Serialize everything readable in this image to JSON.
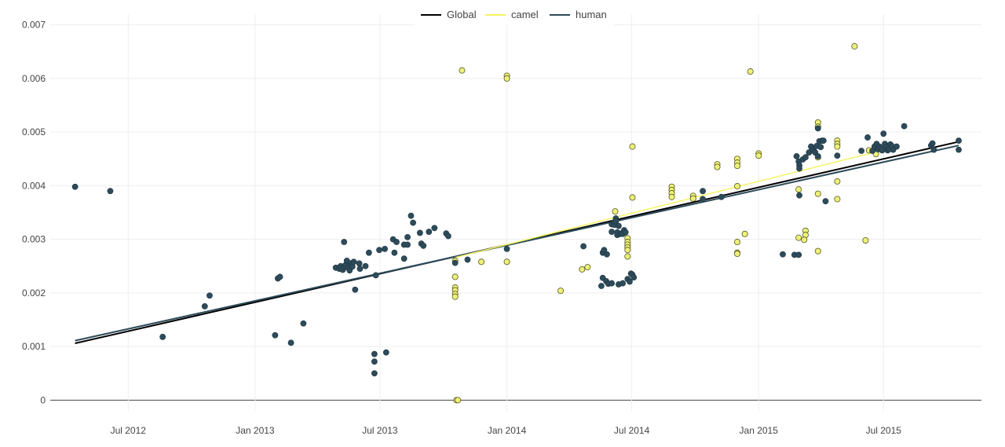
{
  "chart_data": {
    "type": "scatter",
    "title": "",
    "xlabel": "",
    "ylabel": "",
    "xlim": [
      "2012-03-10",
      "2015-11-20"
    ],
    "ylim": [
      -0.0002,
      0.0072
    ],
    "y_ticks": [
      0,
      0.001,
      0.002,
      0.003,
      0.004,
      0.005,
      0.006,
      0.007
    ],
    "y_tick_labels": [
      "0",
      "0.001",
      "0.002",
      "0.003",
      "0.004",
      "0.005",
      "0.006",
      "0.007"
    ],
    "x_ticks": [
      "2012-07-01",
      "2013-01-01",
      "2013-07-01",
      "2014-01-01",
      "2014-07-01",
      "2015-01-01",
      "2015-07-01"
    ],
    "x_tick_labels": [
      "Jul 2012",
      "Jan 2013",
      "Jul 2013",
      "Jan 2014",
      "Jul 2014",
      "Jan 2015",
      "Jul 2015"
    ],
    "grid": true,
    "legend_position": "top-center",
    "legend": [
      {
        "name": "Global",
        "color": "#000000"
      },
      {
        "name": "camel",
        "color": "#f4f463"
      },
      {
        "name": "human",
        "color": "#2d4b5a"
      }
    ],
    "series": [
      {
        "name": "camel",
        "color": "#edf178",
        "points": [
          [
            "2013-10-20",
            0.0
          ],
          [
            "2013-10-22",
            0.0
          ],
          [
            "2013-10-18",
            0.0026
          ],
          [
            "2013-10-18",
            0.0023
          ],
          [
            "2013-10-18",
            0.0021
          ],
          [
            "2013-10-18",
            0.00205
          ],
          [
            "2013-10-18",
            0.00198
          ],
          [
            "2013-10-18",
            0.00193
          ],
          [
            "2013-10-28",
            0.00615
          ],
          [
            "2013-11-25",
            0.00258
          ],
          [
            "2014-01-01",
            0.00605
          ],
          [
            "2014-01-01",
            0.006
          ],
          [
            "2014-01-01",
            0.00258
          ],
          [
            "2014-03-20",
            0.00204
          ],
          [
            "2014-04-20",
            0.00244
          ],
          [
            "2014-04-28",
            0.00248
          ],
          [
            "2014-06-07",
            0.00352
          ],
          [
            "2014-06-25",
            0.00302
          ],
          [
            "2014-06-25",
            0.00295
          ],
          [
            "2014-06-25",
            0.0029
          ],
          [
            "2014-06-25",
            0.00285
          ],
          [
            "2014-06-25",
            0.0028
          ],
          [
            "2014-06-25",
            0.00268
          ],
          [
            "2014-07-02",
            0.00473
          ],
          [
            "2014-07-02",
            0.00378
          ],
          [
            "2014-08-28",
            0.00398
          ],
          [
            "2014-08-28",
            0.00392
          ],
          [
            "2014-08-28",
            0.00386
          ],
          [
            "2014-08-28",
            0.00379
          ],
          [
            "2014-09-28",
            0.00381
          ],
          [
            "2014-09-28",
            0.00376
          ],
          [
            "2014-11-02",
            0.0044
          ],
          [
            "2014-11-02",
            0.00435
          ],
          [
            "2014-12-01",
            0.0045
          ],
          [
            "2014-12-01",
            0.00443
          ],
          [
            "2014-12-01",
            0.00437
          ],
          [
            "2014-12-01",
            0.00295
          ],
          [
            "2014-12-01",
            0.00275
          ],
          [
            "2014-12-01",
            0.00273
          ],
          [
            "2014-12-01",
            0.00399
          ],
          [
            "2014-12-12",
            0.0031
          ],
          [
            "2014-12-20",
            0.00613
          ],
          [
            "2015-01-01",
            0.0046
          ],
          [
            "2015-01-01",
            0.00456
          ],
          [
            "2015-02-28",
            0.00393
          ],
          [
            "2015-02-28",
            0.00303
          ],
          [
            "2015-03-10",
            0.00316
          ],
          [
            "2015-03-10",
            0.00308
          ],
          [
            "2015-03-08",
            0.00299
          ],
          [
            "2015-03-28",
            0.00518
          ],
          [
            "2015-03-28",
            0.0051
          ],
          [
            "2015-03-28",
            0.00453
          ],
          [
            "2015-03-28",
            0.00385
          ],
          [
            "2015-03-28",
            0.00278
          ],
          [
            "2015-04-25",
            0.00484
          ],
          [
            "2015-04-25",
            0.00478
          ],
          [
            "2015-04-25",
            0.00473
          ],
          [
            "2015-04-25",
            0.00408
          ],
          [
            "2015-04-25",
            0.00375
          ],
          [
            "2015-05-20",
            0.0066
          ],
          [
            "2015-06-05",
            0.00298
          ],
          [
            "2015-06-10",
            0.00466
          ],
          [
            "2015-06-20",
            0.00459
          ]
        ]
      },
      {
        "name": "human",
        "color": "#2d4b5a",
        "points": [
          [
            "2012-04-15",
            0.00398
          ],
          [
            "2012-06-05",
            0.0039
          ],
          [
            "2012-08-20",
            0.00118
          ],
          [
            "2012-10-20",
            0.00175
          ],
          [
            "2012-10-27",
            0.00195
          ],
          [
            "2013-01-30",
            0.00121
          ],
          [
            "2013-02-03",
            0.00227
          ],
          [
            "2013-02-06",
            0.0023
          ],
          [
            "2013-02-22",
            0.00107
          ],
          [
            "2013-03-12",
            0.00143
          ],
          [
            "2013-04-28",
            0.00247
          ],
          [
            "2013-05-03",
            0.00245
          ],
          [
            "2013-05-05",
            0.0025
          ],
          [
            "2013-05-08",
            0.00243
          ],
          [
            "2013-05-10",
            0.00248
          ],
          [
            "2013-05-12",
            0.00252
          ],
          [
            "2013-05-14",
            0.0026
          ],
          [
            "2013-05-16",
            0.00247
          ],
          [
            "2013-05-18",
            0.00242
          ],
          [
            "2013-05-20",
            0.00255
          ],
          [
            "2013-05-22",
            0.00249
          ],
          [
            "2013-05-24",
            0.00258
          ],
          [
            "2013-05-26",
            0.00206
          ],
          [
            "2013-05-10",
            0.00295
          ],
          [
            "2013-06-01",
            0.00255
          ],
          [
            "2013-06-02",
            0.00245
          ],
          [
            "2013-06-10",
            0.0025
          ],
          [
            "2013-06-15",
            0.00275
          ],
          [
            "2013-06-25",
            0.00233
          ],
          [
            "2013-06-30",
            0.0028
          ],
          [
            "2013-06-23",
            0.00086
          ],
          [
            "2013-06-23",
            0.00072
          ],
          [
            "2013-06-23",
            0.0005
          ],
          [
            "2013-07-10",
            0.00089
          ],
          [
            "2013-07-08",
            0.00282
          ],
          [
            "2013-07-20",
            0.003
          ],
          [
            "2013-07-25",
            0.00295
          ],
          [
            "2013-07-22",
            0.00275
          ],
          [
            "2013-08-05",
            0.00264
          ],
          [
            "2013-08-05",
            0.0029
          ],
          [
            "2013-08-10",
            0.0029
          ],
          [
            "2013-08-10",
            0.00304
          ],
          [
            "2013-08-15",
            0.00344
          ],
          [
            "2013-08-18",
            0.00331
          ],
          [
            "2013-08-28",
            0.00312
          ],
          [
            "2013-08-30",
            0.00292
          ],
          [
            "2013-09-02",
            0.00288
          ],
          [
            "2013-09-10",
            0.00314
          ],
          [
            "2013-09-18",
            0.00321
          ],
          [
            "2013-10-05",
            0.00311
          ],
          [
            "2013-10-08",
            0.00306
          ],
          [
            "2013-10-18",
            0.00256
          ],
          [
            "2013-11-05",
            0.00262
          ],
          [
            "2014-01-01",
            0.00282
          ],
          [
            "2014-04-22",
            0.00287
          ],
          [
            "2014-05-20",
            0.00228
          ],
          [
            "2014-05-18",
            0.00213
          ],
          [
            "2014-05-25",
            0.00222
          ],
          [
            "2014-05-28",
            0.00217
          ],
          [
            "2014-06-02",
            0.00218
          ],
          [
            "2014-05-20",
            0.00275
          ],
          [
            "2014-05-22",
            0.0028
          ],
          [
            "2014-05-26",
            0.00272
          ],
          [
            "2014-06-02",
            0.00328
          ],
          [
            "2014-06-02",
            0.00314
          ],
          [
            "2014-06-05",
            0.00331
          ],
          [
            "2014-06-06",
            0.00327
          ],
          [
            "2014-06-08",
            0.00339
          ],
          [
            "2014-06-08",
            0.00334
          ],
          [
            "2014-06-10",
            0.00308
          ],
          [
            "2014-06-10",
            0.00313
          ],
          [
            "2014-06-12",
            0.00325
          ],
          [
            "2014-06-14",
            0.0031
          ],
          [
            "2014-06-16",
            0.00311
          ],
          [
            "2014-06-18",
            0.0031
          ],
          [
            "2014-06-20",
            0.00317
          ],
          [
            "2014-06-22",
            0.00313
          ],
          [
            "2014-06-12",
            0.00216
          ],
          [
            "2014-06-18",
            0.00218
          ],
          [
            "2014-06-25",
            0.00226
          ],
          [
            "2014-06-28",
            0.00221
          ],
          [
            "2014-06-30",
            0.00236
          ],
          [
            "2014-07-02",
            0.00234
          ],
          [
            "2014-07-04",
            0.00229
          ],
          [
            "2014-10-12",
            0.00375
          ],
          [
            "2014-10-12",
            0.0039
          ],
          [
            "2014-11-08",
            0.00379
          ],
          [
            "2015-02-05",
            0.00272
          ],
          [
            "2015-02-22",
            0.00271
          ],
          [
            "2015-02-28",
            0.00271
          ],
          [
            "2015-03-01",
            0.00382
          ],
          [
            "2015-02-25",
            0.00455
          ],
          [
            "2015-02-28",
            0.00445
          ],
          [
            "2015-03-01",
            0.00438
          ],
          [
            "2015-03-01",
            0.00432
          ],
          [
            "2015-03-06",
            0.00449
          ],
          [
            "2015-03-10",
            0.00453
          ],
          [
            "2015-03-15",
            0.00462
          ],
          [
            "2015-03-18",
            0.00473
          ],
          [
            "2015-03-20",
            0.00468
          ],
          [
            "2015-03-22",
            0.00465
          ],
          [
            "2015-03-24",
            0.00462
          ],
          [
            "2015-03-26",
            0.00474
          ],
          [
            "2015-03-28",
            0.00507
          ],
          [
            "2015-03-28",
            0.00455
          ],
          [
            "2015-03-30",
            0.00483
          ],
          [
            "2015-04-01",
            0.00472
          ],
          [
            "2015-04-03",
            0.00484
          ],
          [
            "2015-04-05",
            0.00484
          ],
          [
            "2015-04-08",
            0.00371
          ],
          [
            "2015-04-25",
            0.00456
          ],
          [
            "2015-05-30",
            0.00465
          ],
          [
            "2015-06-08",
            0.0049
          ],
          [
            "2015-06-15",
            0.00465
          ],
          [
            "2015-06-18",
            0.00473
          ],
          [
            "2015-06-21",
            0.00478
          ],
          [
            "2015-06-23",
            0.00468
          ],
          [
            "2015-06-25",
            0.00473
          ],
          [
            "2015-06-27",
            0.0047
          ],
          [
            "2015-06-29",
            0.00466
          ],
          [
            "2015-07-01",
            0.00497
          ],
          [
            "2015-07-03",
            0.00478
          ],
          [
            "2015-07-05",
            0.00472
          ],
          [
            "2015-07-07",
            0.00466
          ],
          [
            "2015-07-09",
            0.00468
          ],
          [
            "2015-07-11",
            0.00477
          ],
          [
            "2015-07-13",
            0.00474
          ],
          [
            "2015-07-15",
            0.00467
          ],
          [
            "2015-07-20",
            0.00473
          ],
          [
            "2015-07-31",
            0.00511
          ],
          [
            "2015-09-08",
            0.00475
          ],
          [
            "2015-09-10",
            0.00479
          ],
          [
            "2015-09-12",
            0.00467
          ],
          [
            "2015-10-18",
            0.00484
          ],
          [
            "2015-10-18",
            0.00467
          ]
        ]
      }
    ],
    "trend_lines": [
      {
        "name": "Global",
        "color": "#000000",
        "width": 2,
        "x": [
          "2012-04-15",
          "2015-10-18"
        ],
        "y": [
          0.00106,
          0.00482
        ]
      },
      {
        "name": "human",
        "color": "#2d4b5a",
        "width": 2,
        "x": [
          "2012-04-15",
          "2015-10-18"
        ],
        "y": [
          0.00111,
          0.00475
        ]
      },
      {
        "name": "camel",
        "color": "#f4f463",
        "width": 1.5,
        "x": [
          "2013-10-18",
          "2015-06-20"
        ],
        "y": [
          0.00266,
          0.00463
        ]
      }
    ]
  }
}
